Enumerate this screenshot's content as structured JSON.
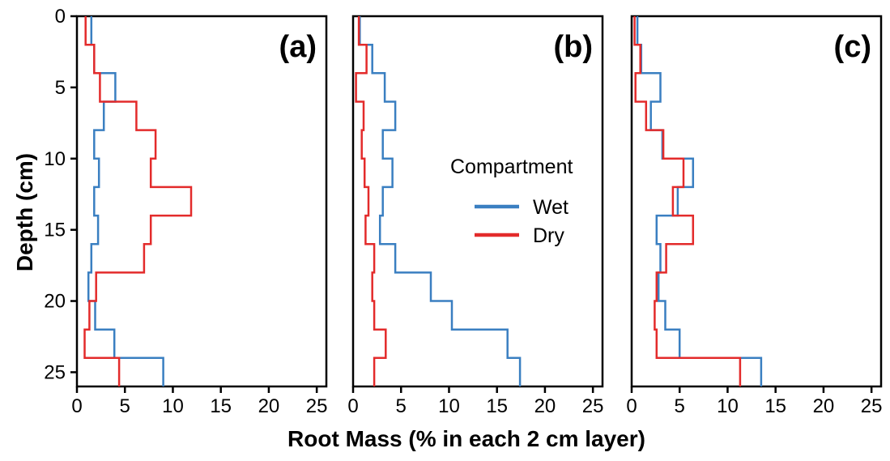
{
  "chart_data": {
    "type": "line",
    "xlabel": "Root Mass (% in each 2 cm layer)",
    "ylabel": "Depth (cm)",
    "xlim": [
      0,
      26
    ],
    "ylim": [
      26,
      0
    ],
    "x_ticks": [
      0,
      5,
      10,
      15,
      20,
      25
    ],
    "y_ticks": [
      0,
      5,
      10,
      15,
      20,
      25
    ],
    "y_inverted": true,
    "grid": false,
    "legend": {
      "title": "Compartment",
      "placement": "right of panel (b)",
      "entries": [
        {
          "name": "Wet",
          "color": "#3a7fc1"
        },
        {
          "name": "Dry",
          "color": "#e32b2b"
        }
      ]
    },
    "layer_boundaries_depth_cm": [
      0,
      2,
      4,
      6,
      8,
      10,
      12,
      14,
      16,
      18,
      20,
      22,
      24,
      26
    ],
    "panels": [
      {
        "label": "(a)",
        "series": [
          {
            "name": "Wet",
            "color": "#3a7fc1",
            "values": [
              1.5,
              1.8,
              4.0,
              2.8,
              1.8,
              2.3,
              1.8,
              2.2,
              1.5,
              1.2,
              1.9,
              3.9,
              9.0
            ]
          },
          {
            "name": "Dry",
            "color": "#e32b2b",
            "values": [
              0.9,
              1.8,
              2.4,
              6.2,
              8.2,
              7.7,
              11.9,
              7.7,
              7.0,
              2.0,
              1.3,
              0.8,
              4.4
            ]
          }
        ]
      },
      {
        "label": "(b)",
        "series": [
          {
            "name": "Wet",
            "color": "#3a7fc1",
            "values": [
              0.7,
              2.0,
              3.3,
              4.4,
              3.1,
              4.1,
              3.1,
              2.8,
              4.4,
              8.1,
              10.3,
              16.1,
              17.4
            ]
          },
          {
            "name": "Dry",
            "color": "#e32b2b",
            "values": [
              0.6,
              1.4,
              0.3,
              1.1,
              0.9,
              1.2,
              1.6,
              1.3,
              2.2,
              2.0,
              2.2,
              3.4,
              2.2
            ]
          }
        ]
      },
      {
        "label": "(c)",
        "series": [
          {
            "name": "Wet",
            "color": "#3a7fc1",
            "values": [
              0.6,
              1.0,
              3.0,
              2.0,
              3.2,
              6.4,
              4.8,
              2.6,
              3.0,
              2.8,
              3.5,
              5.0,
              13.5
            ]
          },
          {
            "name": "Dry",
            "color": "#e32b2b",
            "values": [
              0.3,
              0.9,
              0.4,
              1.5,
              3.3,
              5.4,
              4.3,
              6.4,
              3.6,
              2.6,
              2.4,
              2.6,
              11.3
            ]
          }
        ]
      }
    ]
  }
}
